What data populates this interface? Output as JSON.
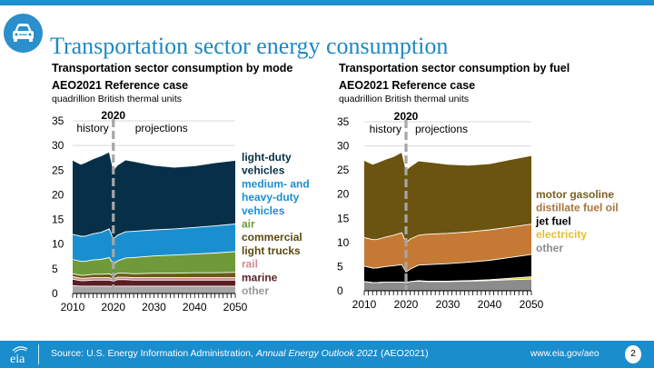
{
  "page": {
    "title": "Transportation sector energy consumption",
    "icon": "car-icon"
  },
  "panels": [
    {
      "title_line1": "Transportation sector consumption by mode",
      "title_line2": "AEO2021 Reference case",
      "units": "quadrillion British thermal units"
    },
    {
      "title_line1": "Transportation sector consumption by fuel",
      "title_line2": "AEO2021 Reference case",
      "units": "quadrillion British thermal units"
    }
  ],
  "footer": {
    "source_prefix": "Source: U.S. Energy Information Administration, ",
    "source_italic": "Annual Energy Outlook 2021",
    "source_suffix": " (AEO2021)",
    "url": "www.eia.gov/aeo",
    "page_number": "2",
    "logo": "eia"
  },
  "chart_data": [
    {
      "type": "area",
      "stacked": true,
      "title": "Transportation sector consumption by mode",
      "subtitle": "AEO2021 Reference case",
      "ylabel": "quadrillion British thermal units",
      "xlabel": "",
      "x": [
        2010,
        2012,
        2013,
        2015,
        2017,
        2019,
        2020,
        2021,
        2023,
        2025,
        2030,
        2035,
        2040,
        2045,
        2050
      ],
      "xlim": [
        2010,
        2050
      ],
      "ylim": [
        0,
        35
      ],
      "xticks": [
        2010,
        2020,
        2030,
        2040,
        2050
      ],
      "yticks": [
        0,
        5,
        10,
        15,
        20,
        25,
        30,
        35
      ],
      "grid": true,
      "annotations": {
        "divider_year": "2020",
        "left": "history",
        "right": "projections"
      },
      "legend_position": "right",
      "series": [
        {
          "name": "other",
          "label": "other",
          "color": "#a6a6a6",
          "values": [
            1.6,
            1.5,
            1.5,
            1.5,
            1.5,
            1.5,
            1.4,
            1.5,
            1.5,
            1.5,
            1.5,
            1.5,
            1.5,
            1.5,
            1.5
          ]
        },
        {
          "name": "marine",
          "label": "marine",
          "color": "#5b1e23",
          "values": [
            1.3,
            1.1,
            1.1,
            1.2,
            1.2,
            1.2,
            1.1,
            1.3,
            1.3,
            1.2,
            1.2,
            1.2,
            1.2,
            1.2,
            1.2
          ]
        },
        {
          "name": "rail",
          "label": "rail",
          "color": "#d08b8f",
          "values": [
            0.5,
            0.5,
            0.5,
            0.5,
            0.5,
            0.5,
            0.4,
            0.5,
            0.5,
            0.5,
            0.5,
            0.5,
            0.5,
            0.5,
            0.5
          ]
        },
        {
          "name": "commercial light trucks",
          "label": "commercial light trucks",
          "color": "#6b5a12",
          "values": [
            0.6,
            0.6,
            0.6,
            0.7,
            0.7,
            0.8,
            0.7,
            0.8,
            0.8,
            0.8,
            0.9,
            0.9,
            1.0,
            1.0,
            1.1
          ]
        },
        {
          "name": "air",
          "label": "air",
          "color": "#6e9a3a",
          "values": [
            2.9,
            2.8,
            2.8,
            2.9,
            3.0,
            3.3,
            2.3,
            2.5,
            3.1,
            3.3,
            3.5,
            3.7,
            3.8,
            4.0,
            4.2
          ]
        },
        {
          "name": "medium- and heavy-duty vehicles",
          "label": "medium- and heavy-duty vehicles",
          "color": "#1a8fd0",
          "values": [
            5.1,
            5.1,
            5.1,
            5.3,
            5.5,
            5.8,
            5.1,
            5.2,
            5.3,
            5.3,
            5.3,
            5.3,
            5.4,
            5.5,
            5.6
          ]
        },
        {
          "name": "light-duty vehicles",
          "label": "light-duty vehicles",
          "color": "#073048",
          "values": [
            15.0,
            14.6,
            14.9,
            15.2,
            15.5,
            15.6,
            14.0,
            14.2,
            14.6,
            14.2,
            13.1,
            12.5,
            12.5,
            12.8,
            12.9
          ]
        }
      ]
    },
    {
      "type": "area",
      "stacked": true,
      "title": "Transportation sector consumption by fuel",
      "subtitle": "AEO2021 Reference case",
      "ylabel": "quadrillion British thermal units",
      "xlabel": "",
      "x": [
        2010,
        2012,
        2013,
        2015,
        2017,
        2019,
        2020,
        2021,
        2023,
        2025,
        2030,
        2035,
        2040,
        2045,
        2050
      ],
      "xlim": [
        2010,
        2050
      ],
      "ylim": [
        0,
        35
      ],
      "xticks": [
        2010,
        2020,
        2030,
        2040,
        2050
      ],
      "yticks": [
        0,
        5,
        10,
        15,
        20,
        25,
        30,
        35
      ],
      "grid": true,
      "annotations": {
        "divider_year": "2020",
        "left": "history",
        "right": "projections"
      },
      "legend_position": "right",
      "series": [
        {
          "name": "other",
          "label": "other",
          "color": "#8c8c8c",
          "values": [
            1.9,
            1.7,
            1.7,
            1.8,
            1.8,
            1.8,
            1.7,
            1.9,
            2.0,
            1.9,
            1.9,
            2.0,
            2.1,
            2.3,
            2.4
          ]
        },
        {
          "name": "electricity",
          "label": "electricity",
          "color": "#e8c93a",
          "values": [
            0.0,
            0.0,
            0.0,
            0.0,
            0.0,
            0.0,
            0.0,
            0.0,
            0.1,
            0.1,
            0.1,
            0.1,
            0.2,
            0.3,
            0.5
          ]
        },
        {
          "name": "jet fuel",
          "label": "jet fuel",
          "color": "#000000",
          "values": [
            3.2,
            3.0,
            3.0,
            3.2,
            3.4,
            3.6,
            2.2,
            2.6,
            3.2,
            3.4,
            3.6,
            3.8,
            4.0,
            4.3,
            4.6
          ]
        },
        {
          "name": "distillate fuel oil",
          "label": "distillate fuel oil",
          "color": "#c47a34",
          "values": [
            5.9,
            5.9,
            5.9,
            6.1,
            6.3,
            6.6,
            6.1,
            6.2,
            6.2,
            6.3,
            6.3,
            6.3,
            6.3,
            6.3,
            6.3
          ]
        },
        {
          "name": "motor gasoline",
          "label": "motor gasoline",
          "color": "#6b5410",
          "values": [
            16.0,
            15.6,
            15.9,
            16.1,
            16.3,
            16.7,
            15.0,
            15.0,
            15.4,
            15.0,
            14.3,
            13.8,
            13.7,
            14.0,
            14.2
          ]
        }
      ]
    }
  ]
}
